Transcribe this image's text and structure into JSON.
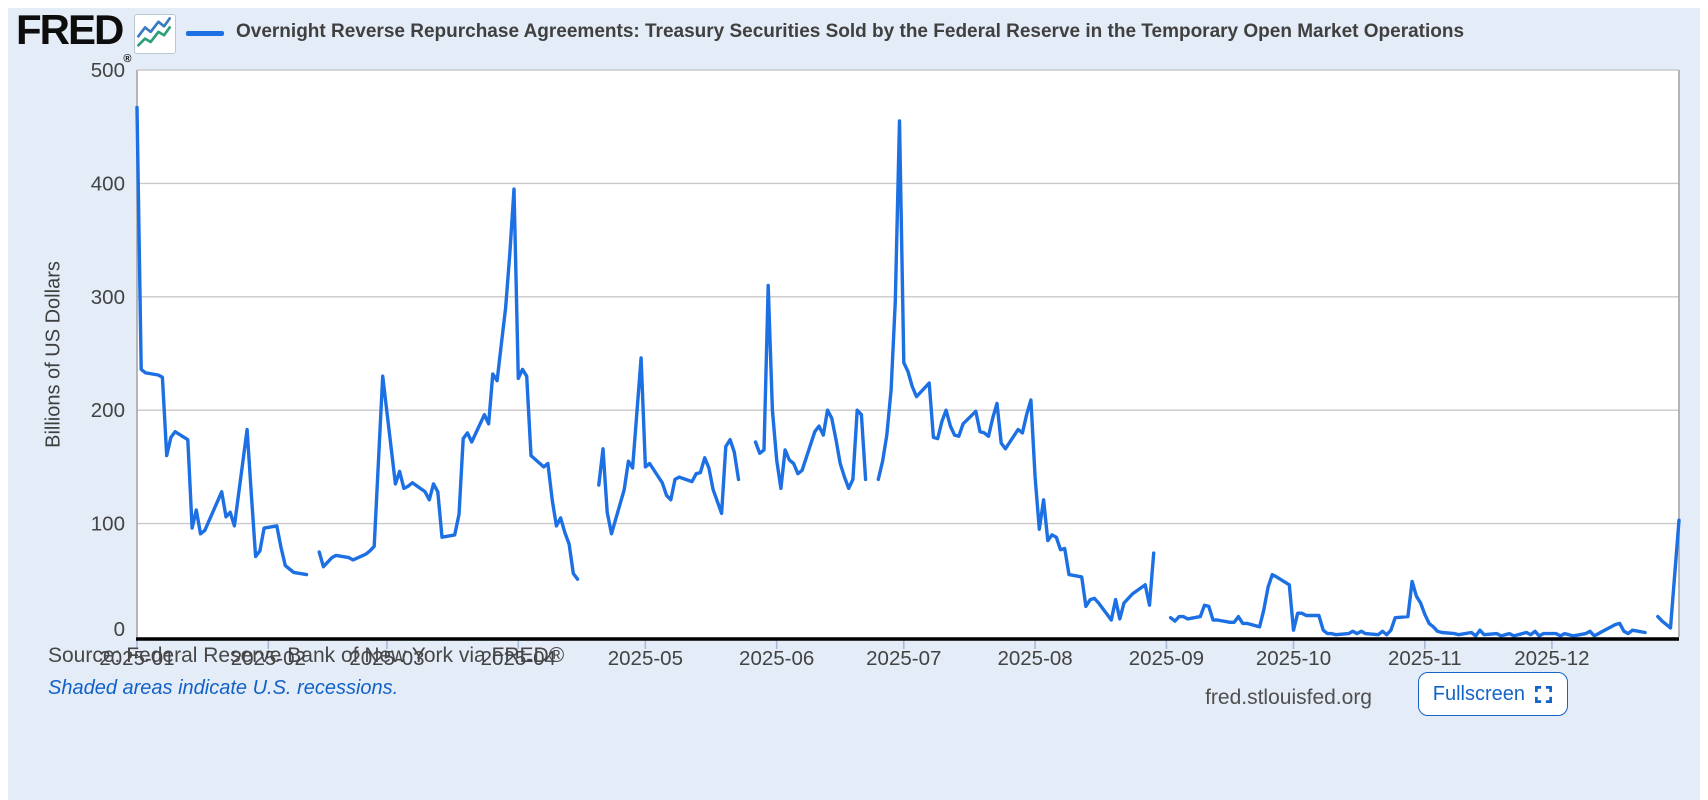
{
  "header": {
    "logo": "FRED",
    "registered": "®",
    "title": "Overnight Reverse Repurchase Agreements: Treasury Securities Sold by the Federal Reserve in the Temporary Open Market Operations"
  },
  "footer": {
    "source": "Source: Federal Reserve Bank of New York via FRED®",
    "recession_note": "Shaded areas indicate U.S. recessions.",
    "site": "fred.stlouisfed.org",
    "fullscreen_label": "Fullscreen"
  },
  "colors": {
    "background": "#e4ecf8",
    "plot_bg": "#ffffff",
    "line": "#1c70e3",
    "grid": "#c9c9c9",
    "plot_border": "#a6a6a6",
    "axis": "#000000",
    "tick": "#a9b9d2",
    "tick_text": "#434343",
    "link_blue": "#1261c7",
    "logo_icon_blue": "#3b7bbf",
    "logo_icon_green": "#2e9e7e"
  },
  "chart_data": {
    "type": "line",
    "title": "Overnight Reverse Repurchase Agreements: Treasury Securities Sold by the Federal Reserve in the Temporary Open Market Operations",
    "ylabel": "Billions of US Dollars",
    "xlabel": "",
    "ylim": [
      0,
      500
    ],
    "yticks": [
      0,
      100,
      200,
      300,
      400,
      500
    ],
    "grid": true,
    "legend_position": "top",
    "x_tick_labels": [
      "2025-01",
      "2025-02",
      "2025-03",
      "2025-04",
      "2025-05",
      "2025-06",
      "2025-07",
      "2025-08",
      "2025-09",
      "2025-10",
      "2025-11",
      "2025-12"
    ],
    "x_tick_days": [
      1,
      32,
      60,
      91,
      121,
      152,
      182,
      213,
      244,
      274,
      305,
      335
    ],
    "days_in_year": 365,
    "x_unit": "day of year 2025",
    "series": [
      {
        "name": "Overnight Reverse Repurchase Agreements: Treasury Securities Sold by the Federal Reserve in the Temporary Open Market Operations",
        "unit": "Billions of US Dollars",
        "segments": [
          [
            [
              1,
              467
            ],
            [
              2,
              236
            ],
            [
              3,
              233
            ],
            [
              6,
              231
            ],
            [
              7,
              229
            ],
            [
              8,
              160
            ],
            [
              9,
              176
            ],
            [
              10,
              181
            ],
            [
              13,
              174
            ],
            [
              14,
              96
            ],
            [
              15,
              112
            ],
            [
              16,
              91
            ],
            [
              17,
              94
            ],
            [
              21,
              128
            ],
            [
              22,
              106
            ],
            [
              23,
              110
            ],
            [
              24,
              98
            ],
            [
              27,
              183
            ],
            [
              28,
              125
            ],
            [
              29,
              71
            ],
            [
              30,
              76
            ],
            [
              31,
              96
            ],
            [
              34,
              98
            ],
            [
              35,
              79
            ],
            [
              36,
              63
            ],
            [
              37,
              60
            ],
            [
              38,
              57
            ],
            [
              41,
              55
            ]
          ],
          [
            [
              44,
              75
            ],
            [
              45,
              62
            ],
            [
              46,
              66
            ],
            [
              47,
              70
            ],
            [
              48,
              72
            ],
            [
              51,
              70
            ],
            [
              52,
              68
            ],
            [
              55,
              73
            ],
            [
              56,
              76
            ],
            [
              57,
              80
            ],
            [
              59,
              230
            ],
            [
              62,
              135
            ],
            [
              63,
              146
            ],
            [
              64,
              131
            ],
            [
              65,
              133
            ],
            [
              66,
              136
            ],
            [
              69,
              128
            ],
            [
              70,
              121
            ],
            [
              71,
              135
            ],
            [
              72,
              128
            ],
            [
              73,
              88
            ],
            [
              76,
              90
            ],
            [
              77,
              108
            ],
            [
              78,
              175
            ],
            [
              79,
              180
            ],
            [
              80,
              172
            ],
            [
              83,
              196
            ],
            [
              84,
              188
            ],
            [
              85,
              232
            ],
            [
              86,
              226
            ],
            [
              87,
              258
            ],
            [
              88,
              290
            ],
            [
              89,
              338
            ],
            [
              90,
              395
            ],
            [
              91,
              228
            ],
            [
              92,
              236
            ],
            [
              93,
              230
            ],
            [
              94,
              160
            ],
            [
              97,
              150
            ],
            [
              98,
              153
            ],
            [
              99,
              121
            ],
            [
              100,
              98
            ],
            [
              101,
              105
            ],
            [
              102,
              92
            ],
            [
              103,
              82
            ],
            [
              104,
              56
            ],
            [
              105,
              51
            ]
          ],
          [
            [
              110,
              134
            ],
            [
              111,
              166
            ],
            [
              112,
              110
            ],
            [
              113,
              91
            ],
            [
              116,
              130
            ],
            [
              117,
              155
            ],
            [
              118,
              149
            ],
            [
              120,
              246
            ],
            [
              121,
              150
            ],
            [
              122,
              153
            ],
            [
              125,
              136
            ],
            [
              126,
              125
            ],
            [
              127,
              121
            ],
            [
              128,
              139
            ],
            [
              129,
              141
            ],
            [
              132,
              137
            ],
            [
              133,
              144
            ],
            [
              134,
              145
            ],
            [
              135,
              158
            ],
            [
              136,
              149
            ],
            [
              137,
              130
            ],
            [
              139,
              109
            ],
            [
              140,
              168
            ],
            [
              141,
              174
            ],
            [
              142,
              163
            ],
            [
              143,
              139
            ]
          ],
          [
            [
              147,
              172
            ],
            [
              148,
              162
            ],
            [
              149,
              165
            ],
            [
              150,
              310
            ],
            [
              151,
              200
            ],
            [
              152,
              156
            ],
            [
              153,
              131
            ],
            [
              154,
              165
            ],
            [
              155,
              156
            ],
            [
              156,
              153
            ],
            [
              157,
              144
            ],
            [
              158,
              147
            ],
            [
              161,
              181
            ],
            [
              162,
              186
            ],
            [
              163,
              178
            ],
            [
              164,
              200
            ],
            [
              165,
              193
            ],
            [
              166,
              174
            ],
            [
              167,
              153
            ],
            [
              168,
              141
            ],
            [
              169,
              131
            ],
            [
              170,
              139
            ],
            [
              171,
              200
            ],
            [
              172,
              196
            ],
            [
              173,
              139
            ]
          ],
          [
            [
              176,
              139
            ],
            [
              177,
              155
            ],
            [
              178,
              178
            ],
            [
              179,
              218
            ],
            [
              180,
              296
            ],
            [
              181,
              455
            ],
            [
              182,
              242
            ],
            [
              183,
              234
            ],
            [
              184,
              221
            ],
            [
              185,
              212
            ],
            [
              188,
              224
            ],
            [
              189,
              176
            ],
            [
              190,
              175
            ],
            [
              191,
              190
            ],
            [
              192,
              200
            ],
            [
              193,
              186
            ],
            [
              194,
              178
            ],
            [
              195,
              177
            ],
            [
              196,
              188
            ],
            [
              199,
              199
            ],
            [
              200,
              181
            ],
            [
              201,
              180
            ],
            [
              202,
              177
            ],
            [
              203,
              193
            ],
            [
              204,
              206
            ],
            [
              205,
              171
            ],
            [
              206,
              166
            ],
            [
              209,
              183
            ],
            [
              210,
              180
            ],
            [
              211,
              196
            ],
            [
              212,
              209
            ],
            [
              213,
              141
            ],
            [
              214,
              95
            ],
            [
              215,
              121
            ],
            [
              216,
              85
            ],
            [
              217,
              90
            ],
            [
              218,
              88
            ],
            [
              219,
              77
            ],
            [
              220,
              78
            ],
            [
              221,
              55
            ],
            [
              224,
              53
            ],
            [
              225,
              27
            ],
            [
              226,
              33
            ],
            [
              227,
              34
            ],
            [
              228,
              30
            ],
            [
              231,
              15
            ],
            [
              232,
              33
            ],
            [
              233,
              16
            ],
            [
              234,
              30
            ],
            [
              235,
              34
            ],
            [
              236,
              38
            ],
            [
              239,
              46
            ],
            [
              240,
              28
            ],
            [
              241,
              74
            ]
          ],
          [
            [
              245,
              17
            ],
            [
              246,
              14
            ],
            [
              247,
              18
            ],
            [
              248,
              18
            ],
            [
              249,
              16
            ],
            [
              252,
              18
            ],
            [
              253,
              28
            ],
            [
              254,
              27
            ],
            [
              255,
              15
            ],
            [
              256,
              15
            ],
            [
              259,
              13
            ],
            [
              260,
              13
            ],
            [
              261,
              18
            ],
            [
              262,
              12
            ],
            [
              263,
              12
            ],
            [
              266,
              9
            ],
            [
              267,
              24
            ],
            [
              268,
              44
            ],
            [
              269,
              55
            ],
            [
              270,
              53
            ],
            [
              273,
              46
            ],
            [
              274,
              6
            ],
            [
              275,
              21
            ],
            [
              276,
              21
            ],
            [
              277,
              19
            ],
            [
              280,
              19
            ],
            [
              281,
              6
            ],
            [
              282,
              3
            ],
            [
              283,
              3
            ],
            [
              284,
              2
            ],
            [
              287,
              3
            ],
            [
              288,
              5
            ],
            [
              289,
              3
            ],
            [
              290,
              5
            ],
            [
              291,
              3
            ],
            [
              294,
              2
            ],
            [
              295,
              5
            ],
            [
              296,
              2
            ],
            [
              297,
              6
            ],
            [
              298,
              17
            ],
            [
              301,
              18
            ],
            [
              302,
              49
            ],
            [
              303,
              36
            ],
            [
              304,
              30
            ],
            [
              305,
              20
            ],
            [
              306,
              12
            ],
            [
              307,
              9
            ],
            [
              308,
              5
            ],
            [
              309,
              4
            ],
            [
              312,
              3
            ],
            [
              313,
              2
            ],
            [
              316,
              4
            ],
            [
              317,
              1
            ],
            [
              318,
              6
            ],
            [
              319,
              2
            ],
            [
              322,
              3
            ],
            [
              323,
              1
            ],
            [
              324,
              2
            ],
            [
              325,
              3
            ],
            [
              326,
              1
            ],
            [
              329,
              4
            ],
            [
              330,
              2
            ],
            [
              331,
              5
            ],
            [
              332,
              1
            ],
            [
              333,
              3
            ],
            [
              336,
              3
            ],
            [
              337,
              1
            ],
            [
              338,
              3
            ],
            [
              339,
              2
            ],
            [
              340,
              1
            ],
            [
              343,
              3
            ],
            [
              344,
              5
            ],
            [
              345,
              1
            ],
            [
              346,
              3
            ],
            [
              347,
              5
            ],
            [
              350,
              11
            ],
            [
              351,
              12
            ],
            [
              352,
              5
            ],
            [
              353,
              3
            ],
            [
              354,
              6
            ],
            [
              357,
              4
            ]
          ],
          [
            [
              360,
              18
            ],
            [
              361,
              14
            ],
            [
              363,
              8
            ],
            [
              365,
              103
            ]
          ]
        ]
      }
    ]
  }
}
